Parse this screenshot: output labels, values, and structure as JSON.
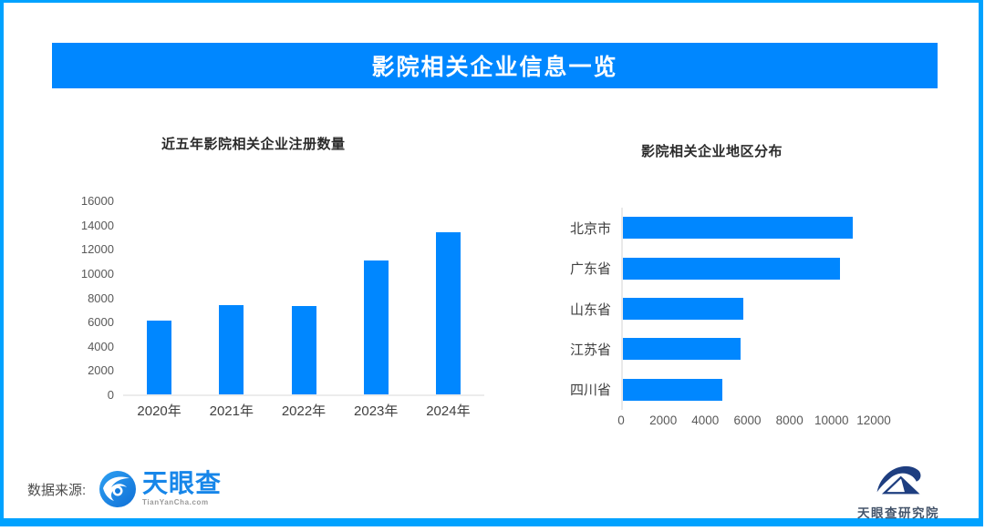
{
  "page": {
    "banner_title": "影院相关企业信息一览"
  },
  "colors": {
    "accent_blue": "#0087FF",
    "frame_blue": "#00A2FF",
    "axis_line": "#ececec",
    "tyc_logo_blue": "#1786E9",
    "institute_navy": "#1E3E80"
  },
  "chart_data": [
    {
      "type": "bar",
      "orientation": "vertical",
      "title": "近五年影院相关企业注册数量",
      "categories": [
        "2020年",
        "2021年",
        "2022年",
        "2023年",
        "2024年"
      ],
      "values": [
        6100,
        7400,
        7300,
        11100,
        13400
      ],
      "xlabel": "",
      "ylabel": "",
      "ylim": [
        0,
        16000
      ],
      "ytick_step": 2000,
      "grid": false,
      "legend": false,
      "bar_color": "#0087FF"
    },
    {
      "type": "bar",
      "orientation": "horizontal",
      "title": "影院相关企业地区分布",
      "categories": [
        "北京市",
        "广东省",
        "山东省",
        "江苏省",
        "四川省"
      ],
      "values": [
        10900,
        10300,
        5700,
        5600,
        4700
      ],
      "xlabel": "",
      "ylabel": "",
      "xlim": [
        0,
        12000
      ],
      "xtick_step": 2000,
      "grid": false,
      "legend": false,
      "bar_color": "#0087FF"
    }
  ],
  "footer": {
    "source_label": "数据来源:",
    "tyc_logo_name": "天眼查",
    "tyc_logo_sub": "TianYanCha.com",
    "institute_name": "天眼查研究院"
  }
}
